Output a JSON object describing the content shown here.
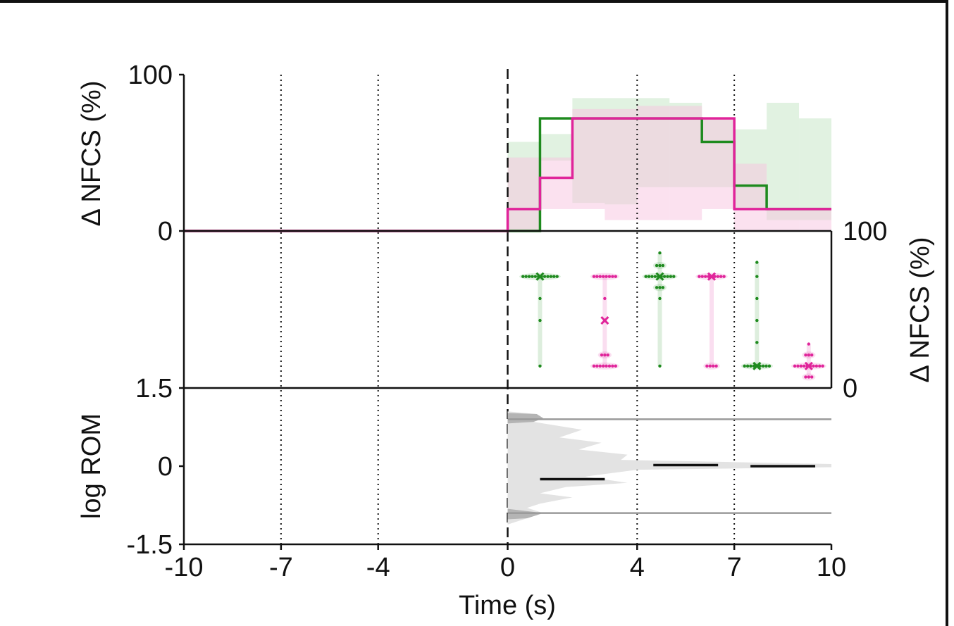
{
  "chart_data": {
    "type": "line",
    "xlabel": "Time (s)",
    "x_ticks": [
      -10,
      -7,
      -4,
      0,
      4,
      7,
      10
    ],
    "xlim": [
      -10,
      10
    ],
    "vlines_dotted": [
      -7,
      -4,
      4,
      7
    ],
    "vline_dashed": 0,
    "colors": {
      "green": "#1e8a1e",
      "magenta": "#e0249a",
      "grey": "#9a9a9a"
    },
    "top_panel": {
      "ylabel": "Δ NFCS (%)",
      "ylim": [
        0,
        100
      ],
      "y_ticks": [
        {
          "value": 0,
          "label": "0"
        },
        {
          "value": 100,
          "label": "100"
        }
      ],
      "series": [
        {
          "color": "#1e8a1e",
          "step_edges": [
            -10,
            0,
            1,
            2,
            3,
            4,
            5,
            6,
            7,
            8,
            9,
            10
          ],
          "values": [
            0,
            0,
            72,
            72,
            72,
            72,
            72,
            57,
            29,
            14,
            14
          ],
          "band_low": [
            0,
            0,
            45,
            18,
            17,
            28,
            28,
            28,
            14,
            7,
            7
          ],
          "band_high": [
            0,
            57,
            62,
            85,
            85,
            85,
            82,
            72,
            65,
            82,
            72
          ]
        },
        {
          "color": "#e0249a",
          "step_edges": [
            -10,
            0,
            1,
            2,
            3,
            4,
            5,
            6,
            7,
            8,
            9,
            10
          ],
          "values": [
            0,
            14,
            34,
            72,
            72,
            72,
            72,
            72,
            14,
            14,
            14
          ],
          "band_low": [
            0,
            0,
            14,
            14,
            7,
            7,
            7,
            14,
            0,
            0,
            0
          ],
          "band_high": [
            0,
            47,
            47,
            78,
            78,
            80,
            80,
            72,
            43,
            14,
            14
          ]
        }
      ]
    },
    "middle_panel": {
      "ylabel": "Δ NFCS (%)",
      "ylim": [
        0,
        100
      ],
      "y_ticks": [
        {
          "value": 0,
          "label": "0"
        },
        {
          "value": 100,
          "label": "100"
        }
      ],
      "groups": [
        {
          "x": 1,
          "color": "#1e8a1e",
          "mean": 71,
          "clusters": [
            {
              "y": 71,
              "n": 12
            },
            {
              "y": 57,
              "n": 1
            },
            {
              "y": 43,
              "n": 1
            },
            {
              "y": 14,
              "n": 1
            }
          ]
        },
        {
          "x": 3,
          "color": "#e0249a",
          "mean": 43,
          "clusters": [
            {
              "y": 71,
              "n": 8
            },
            {
              "y": 57,
              "n": 1
            },
            {
              "y": 43,
              "n": 1
            },
            {
              "y": 21,
              "n": 3
            },
            {
              "y": 14,
              "n": 8
            }
          ]
        },
        {
          "x": 4.7,
          "color": "#1e8a1e",
          "mean": 71,
          "clusters": [
            {
              "y": 86,
              "n": 1
            },
            {
              "y": 78,
              "n": 3
            },
            {
              "y": 71,
              "n": 10
            },
            {
              "y": 64,
              "n": 3
            },
            {
              "y": 57,
              "n": 1
            },
            {
              "y": 14,
              "n": 1
            }
          ]
        },
        {
          "x": 6.3,
          "color": "#e0249a",
          "mean": 71,
          "clusters": [
            {
              "y": 71,
              "n": 9
            },
            {
              "y": 14,
              "n": 4
            }
          ]
        },
        {
          "x": 7.7,
          "color": "#1e8a1e",
          "mean": 14,
          "clusters": [
            {
              "y": 80,
              "n": 1
            },
            {
              "y": 71,
              "n": 1
            },
            {
              "y": 57,
              "n": 1
            },
            {
              "y": 43,
              "n": 1
            },
            {
              "y": 29,
              "n": 1
            },
            {
              "y": 14,
              "n": 9
            }
          ]
        },
        {
          "x": 9.3,
          "color": "#e0249a",
          "mean": 14,
          "clusters": [
            {
              "y": 28,
              "n": 1
            },
            {
              "y": 21,
              "n": 3
            },
            {
              "y": 14,
              "n": 10
            },
            {
              "y": 7,
              "n": 3
            }
          ]
        }
      ]
    },
    "bottom_panel": {
      "ylabel": "log ROM",
      "ylim": [
        -1.5,
        1.5
      ],
      "y_ticks": [
        {
          "value": -1.5,
          "label": "-1.5"
        },
        {
          "value": 0,
          "label": "0"
        },
        {
          "value": 1.5,
          "label": "1.5"
        }
      ],
      "reference_lines": [
        0.9,
        -0.9
      ],
      "density": [
        {
          "y": 1.05,
          "w": 0.0
        },
        {
          "y": 1.0,
          "w": 0.9
        },
        {
          "y": 0.92,
          "w": 1.1
        },
        {
          "y": 0.85,
          "w": 0.8
        },
        {
          "y": 0.7,
          "w": 2.3
        },
        {
          "y": 0.55,
          "w": 1.6
        },
        {
          "y": 0.45,
          "w": 2.9
        },
        {
          "y": 0.32,
          "w": 2.2
        },
        {
          "y": 0.22,
          "w": 3.7
        },
        {
          "y": 0.12,
          "w": 3.5
        },
        {
          "y": 0.04,
          "w": 10.0
        },
        {
          "y": -0.02,
          "w": 10.0
        },
        {
          "y": -0.07,
          "w": 4.0
        },
        {
          "y": -0.2,
          "w": 2.4
        },
        {
          "y": -0.32,
          "w": 3.7
        },
        {
          "y": -0.4,
          "w": 1.8
        },
        {
          "y": -0.52,
          "w": 1.0
        },
        {
          "y": -0.6,
          "w": 2.0
        },
        {
          "y": -0.72,
          "w": 1.0
        },
        {
          "y": -0.8,
          "w": 0.6
        },
        {
          "y": -0.9,
          "w": 1.1
        },
        {
          "y": -1.0,
          "w": 0.6
        },
        {
          "y": -1.12,
          "w": 0.0
        }
      ],
      "dark_density_tips": [
        {
          "y_from": 0.82,
          "y_to": 1.02
        },
        {
          "y_from": -1.02,
          "y_to": -0.82
        }
      ],
      "mean_segments": [
        {
          "x_from": 1,
          "x_to": 3,
          "y": -0.25
        },
        {
          "x_from": 4.5,
          "x_to": 6.5,
          "y": 0.02
        },
        {
          "x_from": 7.5,
          "x_to": 9.5,
          "y": 0.0
        }
      ]
    }
  }
}
